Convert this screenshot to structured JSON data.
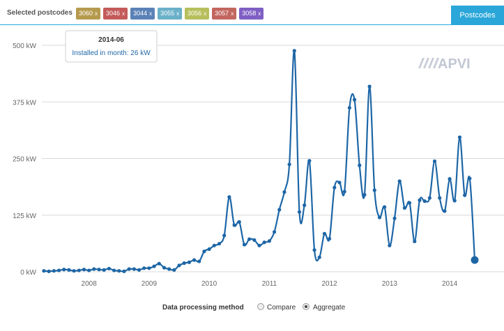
{
  "header": {
    "selected_label": "Selected postcodes",
    "chips": [
      {
        "label": "3060",
        "color": "#b59a4e"
      },
      {
        "label": "3046",
        "color": "#c45a5a"
      },
      {
        "label": "3044",
        "color": "#5b82b7"
      },
      {
        "label": "3055",
        "color": "#6bb0c9"
      },
      {
        "label": "3056",
        "color": "#b7bf5c"
      },
      {
        "label": "3057",
        "color": "#c3665f"
      },
      {
        "label": "3058",
        "color": "#7f5fc4"
      }
    ],
    "chip_close": "x",
    "tab_label": "Postcodes"
  },
  "tooltip": {
    "title": "2014-06",
    "text": "Installed in month: 26 kW"
  },
  "watermark": "APVI",
  "legend": {
    "title": "Data processing method",
    "options": [
      {
        "label": "Compare",
        "checked": false
      },
      {
        "label": "Aggregate",
        "checked": true
      }
    ]
  },
  "chart_data": {
    "type": "line",
    "title": "",
    "xlabel": "",
    "ylabel": "",
    "y_unit": "kW",
    "ylim": [
      0,
      500
    ],
    "yticks": [
      0,
      125,
      250,
      375,
      500
    ],
    "ytick_labels": [
      "0 kW",
      "125 kW",
      "250 kW",
      "375 kW",
      "500 kW"
    ],
    "xlim": [
      "2007-04",
      "2014-06"
    ],
    "xticks": [
      "2008-01",
      "2009-01",
      "2010-01",
      "2011-01",
      "2012-01",
      "2013-01",
      "2014-01"
    ],
    "xtick_labels": [
      "2008",
      "2009",
      "2010",
      "2011",
      "2012",
      "2013",
      "2014"
    ],
    "grid": true,
    "color": "#1d66a6",
    "highlight_month": "2014-06",
    "series": [
      {
        "x": [
          "2007-04",
          "2007-05",
          "2007-06",
          "2007-07",
          "2007-08",
          "2007-09",
          "2007-10",
          "2007-11",
          "2007-12",
          "2008-01",
          "2008-02",
          "2008-03",
          "2008-04",
          "2008-05",
          "2008-06",
          "2008-07",
          "2008-08",
          "2008-09",
          "2008-10",
          "2008-11",
          "2008-12",
          "2009-01",
          "2009-02",
          "2009-03",
          "2009-04",
          "2009-05",
          "2009-06",
          "2009-07",
          "2009-08",
          "2009-09",
          "2009-10",
          "2009-11",
          "2009-12",
          "2010-01",
          "2010-02",
          "2010-03",
          "2010-04",
          "2010-05",
          "2010-06",
          "2010-07",
          "2010-08",
          "2010-09",
          "2010-10",
          "2010-11",
          "2010-12",
          "2011-01",
          "2011-02",
          "2011-03",
          "2011-04",
          "2011-05",
          "2011-06",
          "2011-07",
          "2011-08",
          "2011-09",
          "2011-10",
          "2011-11",
          "2011-12",
          "2012-01",
          "2012-02",
          "2012-03",
          "2012-04",
          "2012-05",
          "2012-06",
          "2012-07",
          "2012-08",
          "2012-09",
          "2012-10",
          "2012-11",
          "2012-12",
          "2013-01",
          "2013-02",
          "2013-03",
          "2013-04",
          "2013-05",
          "2013-06",
          "2013-07",
          "2013-08",
          "2013-09",
          "2013-10",
          "2013-11",
          "2013-12",
          "2014-01",
          "2014-02",
          "2014-03",
          "2014-04",
          "2014-05",
          "2014-06"
        ],
        "y": [
          2,
          1,
          2,
          3,
          5,
          4,
          2,
          3,
          5,
          3,
          6,
          5,
          4,
          7,
          3,
          2,
          1,
          6,
          6,
          4,
          8,
          8,
          12,
          18,
          9,
          6,
          4,
          14,
          19,
          21,
          26,
          23,
          45,
          50,
          58,
          62,
          80,
          165,
          103,
          110,
          60,
          72,
          70,
          58,
          65,
          68,
          88,
          137,
          176,
          237,
          488,
          132,
          147,
          245,
          48,
          32,
          84,
          73,
          186,
          197,
          177,
          362,
          380,
          235,
          170,
          409,
          180,
          120,
          143,
          58,
          118,
          200,
          141,
          152,
          67,
          158,
          156,
          163,
          244,
          163,
          134,
          205,
          157,
          297,
          169,
          206,
          26
        ]
      }
    ]
  }
}
